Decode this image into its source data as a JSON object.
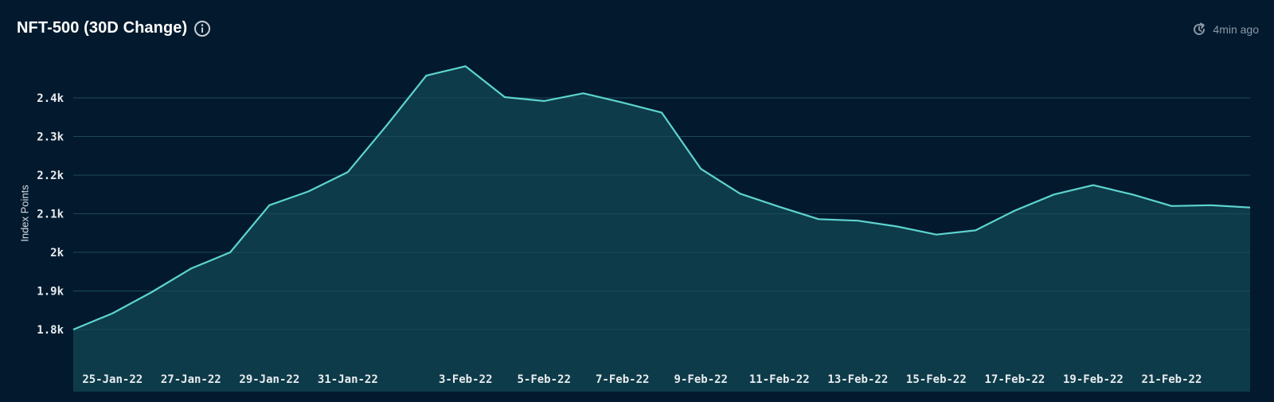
{
  "header": {
    "title": "NFT-500 (30D Change)",
    "updated": "4min ago"
  },
  "icons": {
    "info": "info-circle-icon",
    "refresh": "clock-refresh-icon"
  },
  "colors": {
    "background": "#031a2e",
    "line": "#5dd4d0",
    "area": "#0f3e4c",
    "grid": "#163a4f"
  },
  "chart_data": {
    "type": "area",
    "title": "NFT-500 (30D Change)",
    "xlabel": "",
    "ylabel": "Index Points",
    "ylim": [
      1700,
      2530
    ],
    "yticks": [
      1800,
      1900,
      2000,
      2100,
      2200,
      2300,
      2400
    ],
    "ytick_labels": [
      "1.8k",
      "1.9k",
      "2k",
      "2.1k",
      "2.2k",
      "2.3k",
      "2.4k"
    ],
    "x": [
      "24-Jan-22",
      "25-Jan-22",
      "26-Jan-22",
      "27-Jan-22",
      "28-Jan-22",
      "29-Jan-22",
      "30-Jan-22",
      "31-Jan-22",
      "1-Feb-22",
      "2-Feb-22",
      "3-Feb-22",
      "4-Feb-22",
      "5-Feb-22",
      "6-Feb-22",
      "7-Feb-22",
      "8-Feb-22",
      "9-Feb-22",
      "10-Feb-22",
      "11-Feb-22",
      "12-Feb-22",
      "13-Feb-22",
      "14-Feb-22",
      "15-Feb-22",
      "16-Feb-22",
      "17-Feb-22",
      "18-Feb-22",
      "19-Feb-22",
      "20-Feb-22",
      "21-Feb-22",
      "22-Feb-22",
      "23-Feb-22"
    ],
    "xtick_labels": [
      "25-Jan-22",
      "27-Jan-22",
      "29-Jan-22",
      "31-Jan-22",
      "3-Feb-22",
      "5-Feb-22",
      "7-Feb-22",
      "9-Feb-22",
      "11-Feb-22",
      "13-Feb-22",
      "15-Feb-22",
      "17-Feb-22",
      "19-Feb-22",
      "21-Feb-22"
    ],
    "series": [
      {
        "values": [
          1800,
          1842,
          1897,
          1958,
          2000,
          2122,
          2158,
          2208,
          2330,
          2458,
          2482,
          2402,
          2392,
          2412,
          2388,
          2362,
          2216,
          2152,
          2118,
          2086,
          2082,
          2067,
          2046,
          2057,
          2108,
          2150,
          2174,
          2150,
          2120,
          2122,
          2116
        ]
      }
    ],
    "grid": true,
    "legend": "none"
  }
}
